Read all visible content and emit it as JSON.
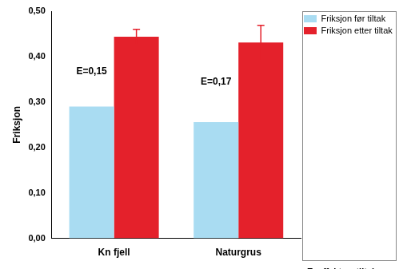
{
  "chart_data": {
    "type": "bar",
    "categories": [
      "Kn fjell",
      "Naturgrus"
    ],
    "series": [
      {
        "name": "Friksjon før tiltak",
        "color": "#a9dcf2",
        "values": [
          0.29,
          0.256
        ]
      },
      {
        "name": "Friksjon etter tiltak",
        "color": "#e4212b",
        "values": [
          0.444,
          0.431
        ],
        "error": [
          0.016,
          0.038
        ]
      }
    ],
    "y_label": "Friksjon",
    "ylim": [
      0,
      0.5
    ],
    "yticks": [
      {
        "value": 0,
        "label": "0,00"
      },
      {
        "value": 0.1,
        "label": "0,10"
      },
      {
        "value": 0.2,
        "label": "0,20"
      },
      {
        "value": 0.3,
        "label": "0,30"
      },
      {
        "value": 0.4,
        "label": "0,40"
      },
      {
        "value": 0.5,
        "label": "0,50"
      }
    ],
    "annotations": [
      {
        "category": "Kn fjell",
        "text": "E=0,15"
      },
      {
        "category": "Naturgrus",
        "text": "E=0,17"
      }
    ],
    "note": "E=effekt av tiltak",
    "legend": "top-right",
    "grid": false
  }
}
